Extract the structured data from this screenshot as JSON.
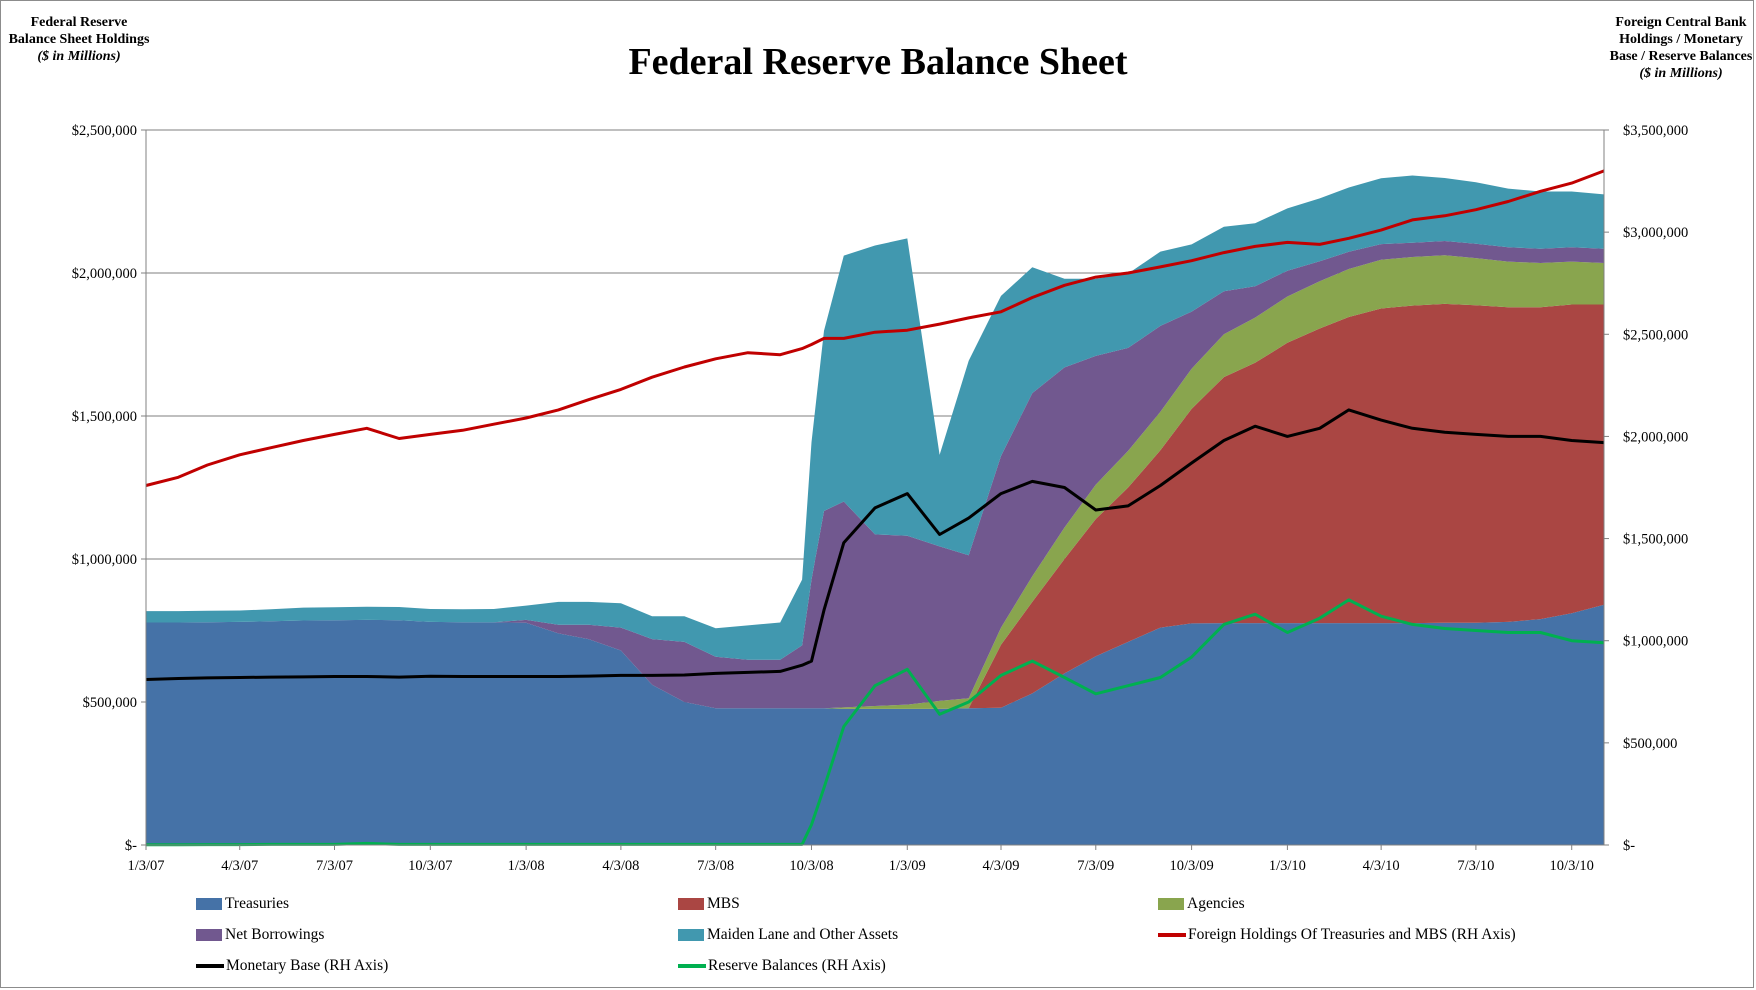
{
  "titles": {
    "main": "Federal Reserve Balance Sheet",
    "left_axis_title": "Federal Reserve Balance Sheet Holdings",
    "left_axis_unit": "($ in Millions)",
    "right_axis_title": "Foreign Central Bank Holdings / Monetary Base / Reserve Balances",
    "right_axis_unit": "($ in Millions)"
  },
  "chart_data": {
    "type": "area",
    "title": "Federal Reserve Balance Sheet",
    "ylabel": "Federal Reserve Balance Sheet Holdings ($ in Millions)",
    "y2label": "Foreign Central Bank Holdings / Monetary Base / Reserve Balances ($ in Millions)",
    "ylim": [
      0,
      2500000
    ],
    "y2lim": [
      0,
      3500000
    ],
    "y_ticks": [
      0,
      500000,
      1000000,
      1500000,
      2000000,
      2500000
    ],
    "y_tick_labels": [
      "$-",
      "$500,000",
      "$1,000,000",
      "$1,500,000",
      "$2,000,000",
      "$2,500,000"
    ],
    "y2_ticks": [
      0,
      500000,
      1000000,
      1500000,
      2000000,
      2500000,
      3000000,
      3500000
    ],
    "y2_tick_labels": [
      "$-",
      "$500,000",
      "$1,000,000",
      "$1,500,000",
      "$2,000,000",
      "$2,500,000",
      "$3,000,000",
      "$3,500,000"
    ],
    "x_tick_labels": [
      "1/3/07",
      "4/3/07",
      "7/3/07",
      "10/3/07",
      "1/3/08",
      "4/3/08",
      "7/3/08",
      "10/3/08",
      "1/3/09",
      "4/3/09",
      "7/3/09",
      "10/3/09",
      "1/3/10",
      "4/3/10",
      "7/3/10",
      "10/3/10"
    ],
    "grid": "horizontal",
    "legend_position": "bottom",
    "x": [
      "2007-01-03",
      "2007-02-03",
      "2007-03-03",
      "2007-04-03",
      "2007-05-03",
      "2007-06-03",
      "2007-07-03",
      "2007-08-03",
      "2007-09-03",
      "2007-10-03",
      "2007-11-03",
      "2007-12-03",
      "2008-01-03",
      "2008-02-03",
      "2008-03-03",
      "2008-04-03",
      "2008-05-03",
      "2008-06-03",
      "2008-07-03",
      "2008-08-03",
      "2008-09-03",
      "2008-09-24",
      "2008-10-03",
      "2008-10-15",
      "2008-11-03",
      "2008-12-03",
      "2009-01-03",
      "2009-02-03",
      "2009-03-03",
      "2009-04-03",
      "2009-05-03",
      "2009-06-03",
      "2009-07-03",
      "2009-08-03",
      "2009-09-03",
      "2009-10-03",
      "2009-11-03",
      "2009-12-03",
      "2010-01-03",
      "2010-02-03",
      "2010-03-03",
      "2010-04-03",
      "2010-05-03",
      "2010-06-03",
      "2010-07-03",
      "2010-08-03",
      "2010-09-03",
      "2010-10-03",
      "2010-11-03"
    ],
    "series": [
      {
        "name": "Treasuries",
        "axis": "left",
        "color": "#4572a7",
        "values": [
          778000,
          778000,
          779000,
          780000,
          782000,
          785000,
          786000,
          787000,
          786000,
          780000,
          779000,
          779000,
          777000,
          740000,
          720000,
          680000,
          560000,
          500000,
          478000,
          478000,
          478000,
          478000,
          478000,
          478000,
          476000,
          476000,
          476000,
          476000,
          478000,
          480000,
          530000,
          600000,
          660000,
          710000,
          760000,
          775000,
          776000,
          776000,
          776000,
          776000,
          776000,
          776000,
          776000,
          777000,
          777000,
          780000,
          790000,
          810000,
          840000
        ]
      },
      {
        "name": "MBS",
        "axis": "left",
        "color": "#aa4643",
        "values": [
          0,
          0,
          0,
          0,
          0,
          0,
          0,
          0,
          0,
          0,
          0,
          0,
          0,
          0,
          0,
          0,
          0,
          0,
          0,
          0,
          0,
          0,
          0,
          0,
          0,
          0,
          0,
          0,
          0,
          220000,
          320000,
          400000,
          480000,
          540000,
          620000,
          750000,
          860000,
          910000,
          980000,
          1030000,
          1070000,
          1100000,
          1110000,
          1115000,
          1110000,
          1100000,
          1090000,
          1080000,
          1050000
        ]
      },
      {
        "name": "Agencies",
        "axis": "left",
        "color": "#89a54e",
        "values": [
          0,
          0,
          0,
          0,
          0,
          0,
          0,
          0,
          0,
          0,
          0,
          0,
          0,
          0,
          0,
          0,
          0,
          0,
          0,
          0,
          0,
          0,
          0,
          0,
          5000,
          10000,
          15000,
          28000,
          35000,
          60000,
          90000,
          110000,
          120000,
          128000,
          135000,
          140000,
          150000,
          158000,
          162000,
          165000,
          168000,
          170000,
          170000,
          170000,
          165000,
          160000,
          155000,
          150000,
          145000
        ]
      },
      {
        "name": "Net Borrowings",
        "axis": "left",
        "color": "#71588f",
        "values": [
          0,
          0,
          0,
          0,
          0,
          0,
          0,
          0,
          0,
          0,
          0,
          0,
          10000,
          30000,
          50000,
          80000,
          160000,
          210000,
          180000,
          170000,
          170000,
          220000,
          450000,
          690000,
          720000,
          600000,
          590000,
          540000,
          500000,
          600000,
          640000,
          560000,
          450000,
          360000,
          300000,
          200000,
          150000,
          110000,
          90000,
          70000,
          60000,
          55000,
          50000,
          50000,
          50000,
          50000,
          50000,
          50000,
          50000
        ]
      },
      {
        "name": "Maiden Lane and Other Assets",
        "axis": "left",
        "color": "#4198af",
        "values": [
          40000,
          40000,
          40000,
          40000,
          42000,
          45000,
          45000,
          46000,
          46000,
          45000,
          45000,
          46000,
          50000,
          80000,
          80000,
          85000,
          80000,
          90000,
          100000,
          120000,
          130000,
          230000,
          480000,
          630000,
          860000,
          1010000,
          1040000,
          320000,
          680000,
          560000,
          440000,
          310000,
          270000,
          260000,
          260000,
          235000,
          226000,
          220000,
          218000,
          220000,
          225000,
          230000,
          235000,
          220000,
          215000,
          205000,
          200000,
          195000,
          190000
        ]
      },
      {
        "name": "Foreign Holdings Of Treasuries and MBS (RH Axis)",
        "axis": "right",
        "color": "#c00000",
        "values": [
          1760000,
          1800000,
          1860000,
          1910000,
          1945000,
          1980000,
          2010000,
          2040000,
          1990000,
          2010000,
          2030000,
          2060000,
          2090000,
          2130000,
          2180000,
          2230000,
          2290000,
          2340000,
          2380000,
          2410000,
          2400000,
          2430000,
          2450000,
          2480000,
          2480000,
          2510000,
          2520000,
          2550000,
          2580000,
          2610000,
          2680000,
          2740000,
          2780000,
          2800000,
          2830000,
          2860000,
          2900000,
          2930000,
          2950000,
          2940000,
          2970000,
          3010000,
          3060000,
          3080000,
          3110000,
          3150000,
          3200000,
          3240000,
          3300000
        ]
      },
      {
        "name": "Monetary Base (RH Axis)",
        "axis": "right",
        "color": "#000000",
        "values": [
          810000,
          815000,
          818000,
          820000,
          822000,
          823000,
          825000,
          825000,
          822000,
          826000,
          825000,
          825000,
          825000,
          825000,
          827000,
          830000,
          830000,
          832000,
          840000,
          845000,
          850000,
          880000,
          900000,
          1150000,
          1480000,
          1650000,
          1720000,
          1520000,
          1600000,
          1720000,
          1780000,
          1750000,
          1640000,
          1660000,
          1760000,
          1870000,
          1980000,
          2050000,
          2000000,
          2040000,
          2130000,
          2080000,
          2040000,
          2020000,
          2010000,
          2000000,
          2000000,
          1980000,
          1970000
        ]
      },
      {
        "name": "Reserve Balances (RH Axis)",
        "axis": "right",
        "color": "#00b050",
        "values": [
          1000,
          1000,
          2000,
          2000,
          3000,
          3000,
          3000,
          8000,
          3000,
          3000,
          3000,
          3000,
          3000,
          3000,
          3000,
          3000,
          3000,
          3000,
          3000,
          3000,
          3000,
          3000,
          100000,
          280000,
          580000,
          780000,
          860000,
          640000,
          700000,
          830000,
          900000,
          820000,
          740000,
          780000,
          820000,
          920000,
          1080000,
          1130000,
          1040000,
          1110000,
          1200000,
          1120000,
          1080000,
          1060000,
          1050000,
          1040000,
          1040000,
          1000000,
          990000
        ]
      }
    ]
  },
  "legend": {
    "items": [
      {
        "label": "Treasuries",
        "kind": "swatch",
        "color": "#4572a7"
      },
      {
        "label": "MBS",
        "kind": "swatch",
        "color": "#aa4643"
      },
      {
        "label": "Agencies",
        "kind": "swatch",
        "color": "#89a54e"
      },
      {
        "label": "Net Borrowings",
        "kind": "swatch",
        "color": "#71588f"
      },
      {
        "label": "Maiden Lane and Other Assets",
        "kind": "swatch",
        "color": "#4198af"
      },
      {
        "label": "Foreign Holdings Of Treasuries and MBS (RH Axis)",
        "kind": "line",
        "color": "#c00000"
      },
      {
        "label": "Monetary Base (RH Axis)",
        "kind": "line",
        "color": "#000000"
      },
      {
        "label": "Reserve Balances (RH Axis)",
        "kind": "line",
        "color": "#00b050"
      }
    ]
  }
}
